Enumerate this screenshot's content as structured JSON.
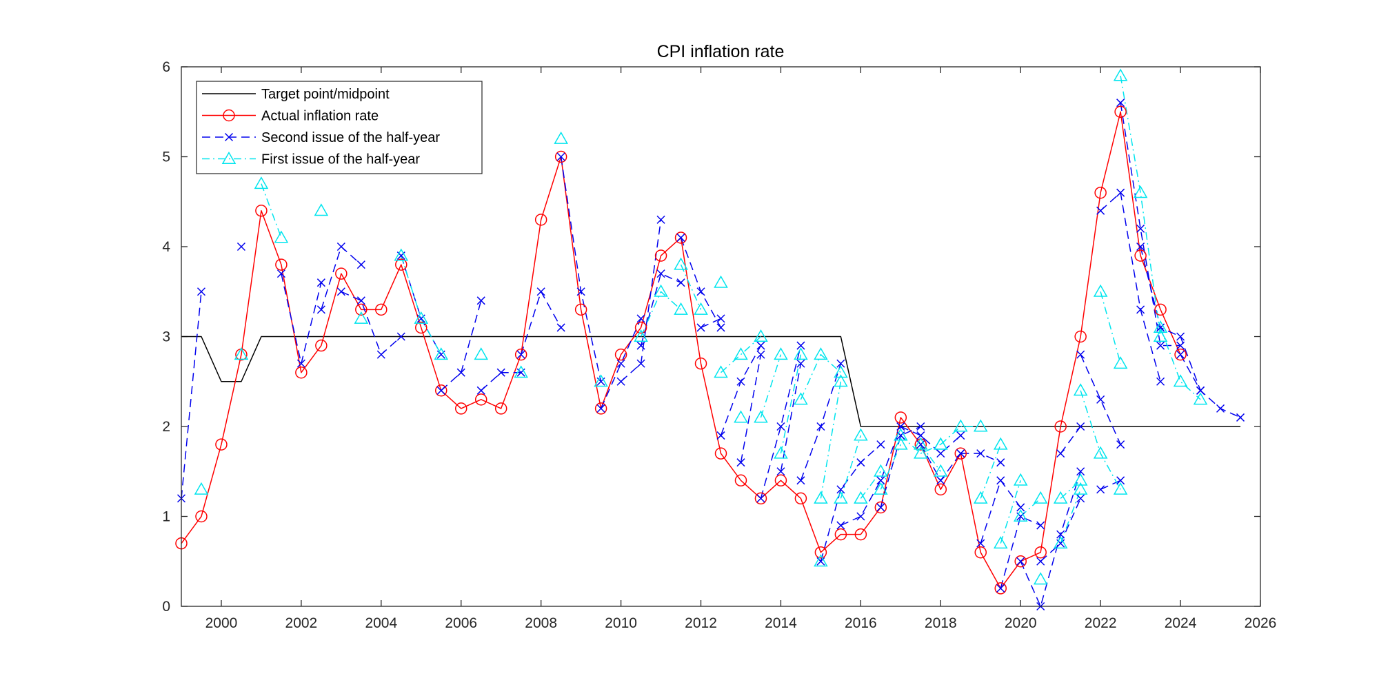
{
  "chart_data": {
    "type": "line",
    "title": "CPI inflation rate",
    "xlabel": "",
    "ylabel": "",
    "xlim": [
      1999,
      2026
    ],
    "ylim": [
      0,
      6
    ],
    "xticks": [
      2000,
      2002,
      2004,
      2006,
      2008,
      2010,
      2012,
      2014,
      2016,
      2018,
      2020,
      2022,
      2024,
      2026
    ],
    "yticks": [
      0,
      1,
      2,
      3,
      4,
      5,
      6
    ],
    "grid": false,
    "legend_position": "top-left",
    "series": [
      {
        "name": "Target point/midpoint",
        "color": "#000000",
        "style": "solid",
        "marker": "none",
        "x": [
          1999.0,
          1999.5,
          2000.0,
          2000.5,
          2001.0,
          2015.5,
          2016.0,
          2025.5
        ],
        "y": [
          3.0,
          3.0,
          2.5,
          2.5,
          3.0,
          3.0,
          2.0,
          2.0
        ]
      },
      {
        "name": "Actual inflation rate",
        "color": "#ff0000",
        "style": "solid",
        "marker": "circle",
        "x": [
          1999.0,
          1999.5,
          2000.0,
          2000.5,
          2001.0,
          2001.5,
          2002.0,
          2002.5,
          2003.0,
          2003.5,
          2004.0,
          2004.5,
          2005.0,
          2005.5,
          2006.0,
          2006.5,
          2007.0,
          2007.5,
          2008.0,
          2008.5,
          2009.0,
          2009.5,
          2010.0,
          2010.5,
          2011.0,
          2011.5,
          2012.0,
          2012.5,
          2013.0,
          2013.5,
          2014.0,
          2014.5,
          2015.0,
          2015.5,
          2016.0,
          2016.5,
          2017.0,
          2017.5,
          2018.0,
          2018.5,
          2019.0,
          2019.5,
          2020.0,
          2020.5,
          2021.0,
          2021.5,
          2022.0,
          2022.5,
          2023.0,
          2023.5,
          2024.0
        ],
        "y": [
          0.7,
          1.0,
          1.8,
          2.8,
          4.4,
          3.8,
          2.6,
          2.9,
          3.7,
          3.3,
          3.3,
          3.8,
          3.1,
          2.4,
          2.2,
          2.3,
          2.2,
          2.8,
          4.3,
          5.0,
          3.3,
          2.2,
          2.8,
          3.1,
          3.9,
          4.1,
          2.7,
          1.7,
          1.4,
          1.2,
          1.4,
          1.2,
          0.6,
          0.8,
          0.8,
          1.1,
          2.1,
          1.8,
          1.3,
          1.7,
          0.6,
          0.2,
          0.5,
          0.6,
          2.0,
          3.0,
          4.6,
          5.5,
          3.9,
          3.3,
          2.8
        ]
      },
      {
        "name": "Second issue of the half-year",
        "color": "#0000ee",
        "style": "dashed",
        "marker": "x",
        "segments": [
          {
            "x": [
              1999.0,
              1999.5
            ],
            "y": [
              1.2,
              3.5
            ]
          },
          {
            "x": [
              2000.5
            ],
            "y": [
              4.0
            ]
          },
          {
            "x": [
              2001.5,
              2002.0,
              2002.5
            ],
            "y": [
              3.7,
              2.7,
              3.6
            ]
          },
          {
            "x": [
              2002.5,
              2003.0,
              2003.5
            ],
            "y": [
              3.3,
              4.0,
              3.8
            ]
          },
          {
            "x": [
              2003.0,
              2003.5,
              2004.0,
              2004.5
            ],
            "y": [
              3.5,
              3.4,
              2.8,
              3.0
            ]
          },
          {
            "x": [
              2004.5,
              2005.0,
              2005.5
            ],
            "y": [
              3.9,
              3.2,
              2.8
            ]
          },
          {
            "x": [
              2005.5,
              2006.0,
              2006.5
            ],
            "y": [
              2.4,
              2.6,
              3.4
            ]
          },
          {
            "x": [
              2006.5,
              2007.0,
              2007.5
            ],
            "y": [
              2.4,
              2.6,
              2.6
            ]
          },
          {
            "x": [
              2007.5,
              2008.0,
              2008.5
            ],
            "y": [
              2.8,
              3.5,
              3.1
            ]
          },
          {
            "x": [
              2008.5,
              2009.0,
              2009.5
            ],
            "y": [
              5.0,
              3.5,
              2.5
            ]
          },
          {
            "x": [
              2009.5,
              2010.0,
              2010.5
            ],
            "y": [
              2.2,
              2.7,
              3.2
            ]
          },
          {
            "x": [
              2010.0,
              2010.5,
              2011.0
            ],
            "y": [
              2.5,
              2.7,
              4.3
            ]
          },
          {
            "x": [
              2010.5,
              2011.0,
              2011.5
            ],
            "y": [
              2.9,
              3.7,
              3.6
            ]
          },
          {
            "x": [
              2011.5,
              2012.0,
              2012.5
            ],
            "y": [
              4.1,
              3.5,
              3.1
            ]
          },
          {
            "x": [
              2012.0,
              2012.5
            ],
            "y": [
              3.1,
              3.2
            ]
          },
          {
            "x": [
              2012.5,
              2013.0,
              2013.5
            ],
            "y": [
              1.9,
              2.5,
              2.9
            ]
          },
          {
            "x": [
              2013.0,
              2013.5
            ],
            "y": [
              1.6,
              2.8
            ]
          },
          {
            "x": [
              2013.5,
              2014.0,
              2014.5
            ],
            "y": [
              1.2,
              2.0,
              2.9
            ]
          },
          {
            "x": [
              2014.0,
              2014.5
            ],
            "y": [
              1.5,
              2.7
            ]
          },
          {
            "x": [
              2014.5,
              2015.0,
              2015.5
            ],
            "y": [
              1.4,
              2.0,
              2.7
            ]
          },
          {
            "x": [
              2015.0,
              2015.5,
              2016.0,
              2016.5
            ],
            "y": [
              0.5,
              1.3,
              1.6,
              1.8
            ]
          },
          {
            "x": [
              2015.5,
              2016.0,
              2016.5,
              2017.0
            ],
            "y": [
              0.9,
              1.0,
              1.4,
              2.0
            ]
          },
          {
            "x": [
              2016.5,
              2017.0,
              2017.5
            ],
            "y": [
              1.1,
              1.9,
              2.0
            ]
          },
          {
            "x": [
              2017.0,
              2017.5,
              2018.0,
              2018.5
            ],
            "y": [
              2.0,
              1.9,
              1.7,
              1.9
            ]
          },
          {
            "x": [
              2017.5,
              2018.0,
              2018.5
            ],
            "y": [
              1.8,
              1.4,
              1.7
            ]
          },
          {
            "x": [
              2018.5,
              2019.0,
              2019.5
            ],
            "y": [
              1.7,
              1.7,
              1.6
            ]
          },
          {
            "x": [
              2019.0,
              2019.5,
              2020.0
            ],
            "y": [
              0.7,
              1.4,
              1.1
            ]
          },
          {
            "x": [
              2019.5,
              2020.0,
              2020.5
            ],
            "y": [
              0.2,
              1.0,
              0.9
            ]
          },
          {
            "x": [
              2020.0,
              2020.5,
              2021.0,
              2021.5
            ],
            "y": [
              0.5,
              0.0,
              0.8,
              1.5
            ]
          },
          {
            "x": [
              2020.5,
              2021.0,
              2021.5
            ],
            "y": [
              0.5,
              0.7,
              1.2
            ]
          },
          {
            "x": [
              2021.0,
              2021.5
            ],
            "y": [
              1.7,
              2.0
            ]
          },
          {
            "x": [
              2021.5,
              2022.0,
              2022.5
            ],
            "y": [
              2.8,
              2.3,
              1.8
            ]
          },
          {
            "x": [
              2022.0,
              2022.5
            ],
            "y": [
              1.3,
              1.4
            ]
          },
          {
            "x": [
              2022.0,
              2022.5,
              2023.0,
              2023.5
            ],
            "y": [
              4.4,
              4.6,
              3.3,
              2.5
            ]
          },
          {
            "x": [
              2022.5,
              2023.0,
              2023.5,
              2024.0
            ],
            "y": [
              5.6,
              4.2,
              2.9,
              2.9
            ]
          },
          {
            "x": [
              2023.0,
              2023.5,
              2024.0,
              2024.5
            ],
            "y": [
              4.0,
              3.1,
              3.0,
              2.4
            ]
          },
          {
            "x": [
              2024.0,
              2024.5,
              2025.0,
              2025.5
            ],
            "y": [
              2.8,
              2.4,
              2.2,
              2.1
            ]
          }
        ]
      },
      {
        "name": "First issue of the half-year",
        "color": "#00e5ee",
        "style": "dashdot",
        "marker": "triangle",
        "segments": [
          {
            "x": [
              1999.5
            ],
            "y": [
              1.3
            ]
          },
          {
            "x": [
              2000.5
            ],
            "y": [
              2.8
            ]
          },
          {
            "x": [
              2001.0,
              2001.5
            ],
            "y": [
              4.7,
              4.1
            ]
          },
          {
            "x": [
              2002.5
            ],
            "y": [
              4.4
            ]
          },
          {
            "x": [
              2003.5
            ],
            "y": [
              3.2
            ]
          },
          {
            "x": [
              2004.5,
              2005.0,
              2005.5
            ],
            "y": [
              3.9,
              3.2,
              2.8
            ]
          },
          {
            "x": [
              2006.5
            ],
            "y": [
              2.8
            ]
          },
          {
            "x": [
              2007.5
            ],
            "y": [
              2.6
            ]
          },
          {
            "x": [
              2008.5
            ],
            "y": [
              5.2
            ]
          },
          {
            "x": [
              2009.5
            ],
            "y": [
              2.5
            ]
          },
          {
            "x": [
              2010.5,
              2011.0,
              2011.5
            ],
            "y": [
              3.0,
              3.5,
              3.3
            ]
          },
          {
            "x": [
              2011.5,
              2012.0
            ],
            "y": [
              3.8,
              3.3
            ]
          },
          {
            "x": [
              2012.5
            ],
            "y": [
              3.6
            ]
          },
          {
            "x": [
              2012.5,
              2013.0,
              2013.5
            ],
            "y": [
              2.6,
              2.8,
              3.0
            ]
          },
          {
            "x": [
              2013.0
            ],
            "y": [
              2.1
            ]
          },
          {
            "x": [
              2013.5,
              2014.0
            ],
            "y": [
              2.1,
              2.8
            ]
          },
          {
            "x": [
              2014.0,
              2014.5
            ],
            "y": [
              1.7,
              2.8
            ]
          },
          {
            "x": [
              2014.5,
              2015.0,
              2015.5
            ],
            "y": [
              2.3,
              2.8,
              2.6
            ]
          },
          {
            "x": [
              2015.0,
              2015.5
            ],
            "y": [
              1.2,
              2.5
            ]
          },
          {
            "x": [
              2015.0
            ],
            "y": [
              0.5
            ]
          },
          {
            "x": [
              2015.5,
              2016.0
            ],
            "y": [
              1.2,
              1.9
            ]
          },
          {
            "x": [
              2016.0,
              2016.5
            ],
            "y": [
              1.2,
              1.5
            ]
          },
          {
            "x": [
              2016.5,
              2017.0
            ],
            "y": [
              1.3,
              1.8
            ]
          },
          {
            "x": [
              2017.0,
              2017.5,
              2018.0
            ],
            "y": [
              1.9,
              1.7,
              1.8
            ]
          },
          {
            "x": [
              2017.5,
              2018.0
            ],
            "y": [
              1.8,
              1.5
            ]
          },
          {
            "x": [
              2018.0,
              2018.5,
              2019.0
            ],
            "y": [
              1.8,
              2.0,
              2.0
            ]
          },
          {
            "x": [
              2019.0,
              2019.5
            ],
            "y": [
              1.2,
              1.8
            ]
          },
          {
            "x": [
              2019.5,
              2020.0
            ],
            "y": [
              0.7,
              1.4
            ]
          },
          {
            "x": [
              2020.0,
              2020.5
            ],
            "y": [
              1.0,
              1.2
            ]
          },
          {
            "x": [
              2020.5
            ],
            "y": [
              0.3
            ]
          },
          {
            "x": [
              2021.0,
              2021.5
            ],
            "y": [
              0.7,
              1.3
            ]
          },
          {
            "x": [
              2021.0,
              2021.5
            ],
            "y": [
              1.2,
              1.4
            ]
          },
          {
            "x": [
              2021.5,
              2022.0,
              2022.5
            ],
            "y": [
              2.4,
              1.7,
              1.3
            ]
          },
          {
            "x": [
              2022.0,
              2022.5
            ],
            "y": [
              3.5,
              2.7
            ]
          },
          {
            "x": [
              2022.5,
              2023.0,
              2023.5
            ],
            "y": [
              5.9,
              4.6,
              3.0
            ]
          },
          {
            "x": [
              2023.5,
              2024.0,
              2024.5
            ],
            "y": [
              3.1,
              2.5,
              2.3
            ]
          }
        ]
      }
    ]
  }
}
